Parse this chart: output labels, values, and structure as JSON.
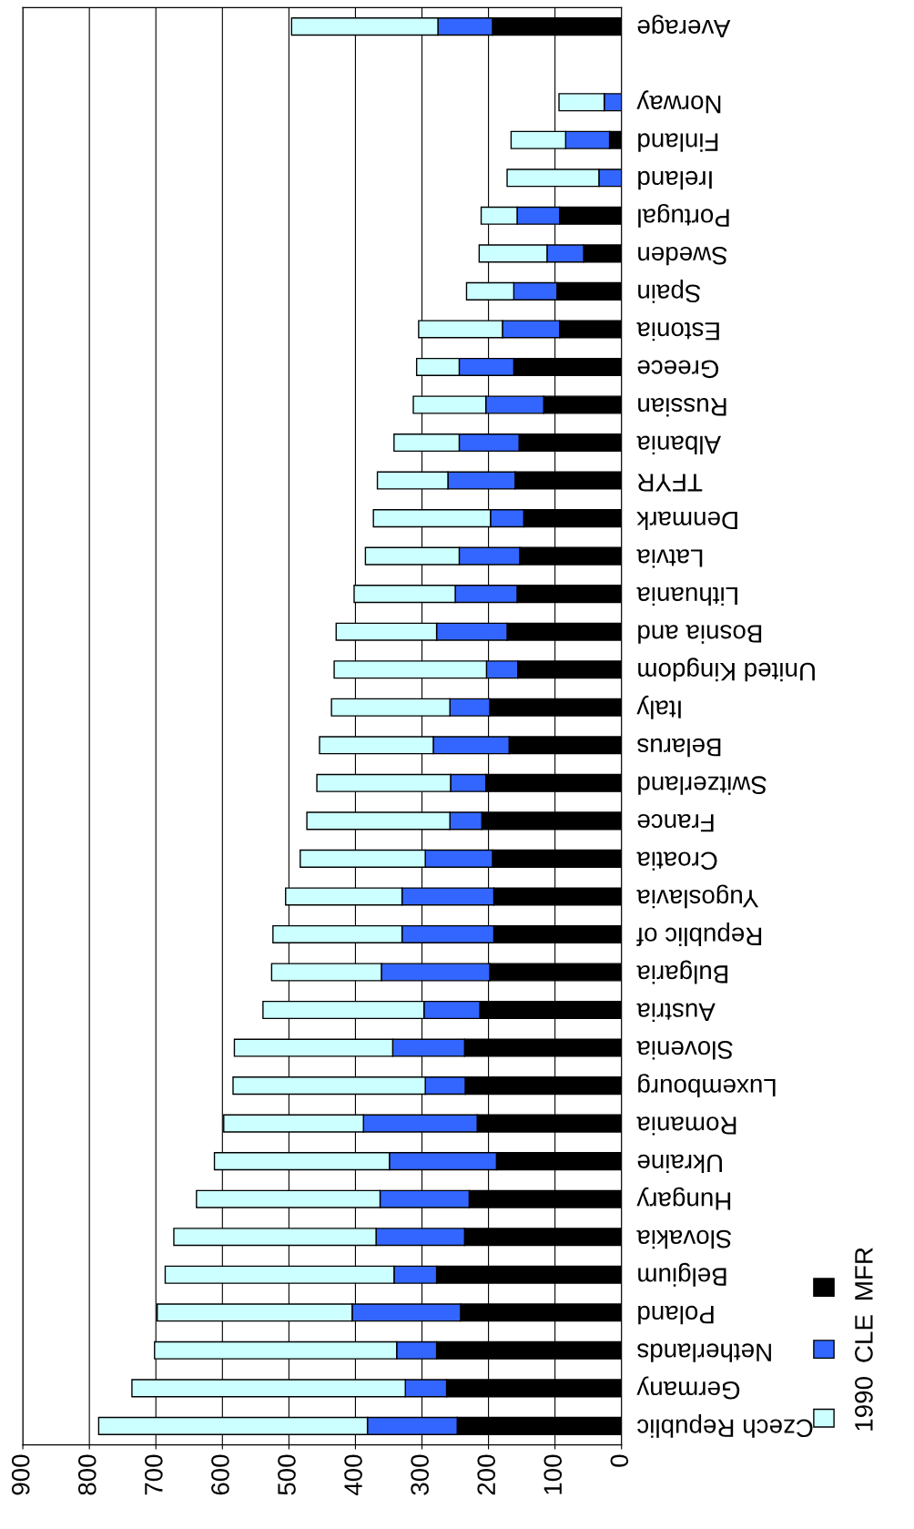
{
  "chart_data": {
    "type": "bar",
    "orientation": "horizontal",
    "stacked": true,
    "categories": [
      "Average",
      null,
      "Norway",
      "Finland",
      "Ireland",
      "Portugal",
      "Sweden",
      "Spain",
      "Estonia",
      "Greece",
      "Russian",
      "Albania",
      "TFYR",
      "Denmark",
      "Latvia",
      "Lithuania",
      "Bosnia and",
      "United Kingdom",
      "Italy",
      "Belarus",
      "Switzerland",
      "France",
      "Croatia",
      "Yugoslavia",
      "Republic of",
      "Bulgaria",
      "Austria",
      "Slovenia",
      "Luxembourg",
      "Romania",
      "Ukraine",
      "Hungary",
      "Slovakia",
      "Belgium",
      "Poland",
      "Netherlands",
      "Germany",
      "Czech Republic"
    ],
    "series": [
      {
        "name": "MFR",
        "color": "#000000",
        "values": [
          194,
          null,
          0,
          18,
          0,
          93,
          57,
          97,
          93,
          162,
          117,
          154,
          160,
          147,
          153,
          157,
          172,
          156,
          198,
          169,
          204,
          210,
          194,
          192,
          192,
          198,
          213,
          236,
          235,
          217,
          188,
          229,
          236,
          278,
          242,
          278,
          263,
          247
        ]
      },
      {
        "name": "CLE",
        "color": "#3366ff",
        "values": [
          82,
          null,
          26,
          66,
          34,
          64,
          55,
          65,
          86,
          82,
          87,
          90,
          101,
          50,
          91,
          93,
          106,
          47,
          60,
          114,
          53,
          48,
          101,
          138,
          138,
          163,
          84,
          108,
          60,
          171,
          161,
          134,
          133,
          64,
          163,
          60,
          62,
          135
        ]
      },
      {
        "name": "1990",
        "color": "#ccffff",
        "values": [
          220,
          null,
          68,
          82,
          138,
          54,
          102,
          71,
          126,
          64,
          109,
          98,
          106,
          176,
          141,
          152,
          151,
          229,
          178,
          171,
          201,
          215,
          188,
          175,
          194,
          165,
          242,
          238,
          289,
          210,
          263,
          276,
          304,
          344,
          293,
          364,
          411,
          404
        ]
      }
    ],
    "xlim": [
      900,
      0
    ],
    "xticks": [
      0,
      100,
      200,
      300,
      400,
      500,
      600,
      700,
      800,
      900
    ],
    "grid": "x",
    "legend": "right"
  }
}
